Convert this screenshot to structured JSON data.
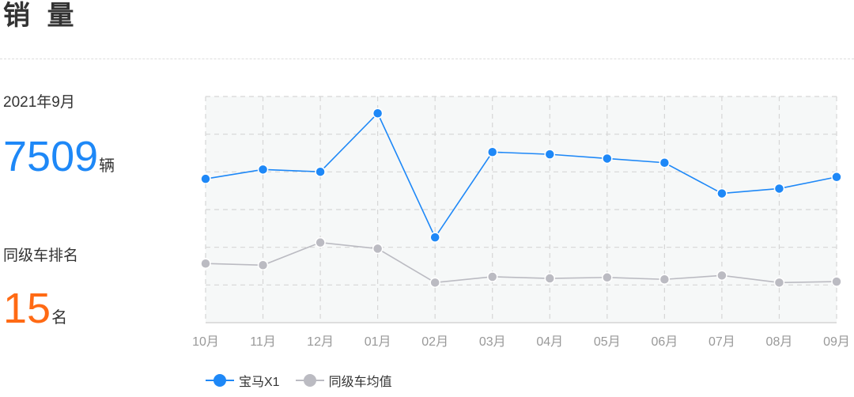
{
  "header": {
    "title": "销 量"
  },
  "stats": {
    "period": "2021年9月",
    "sales_value": "7509",
    "sales_unit": "辆",
    "rank_label": "同级车排名",
    "rank_value": "15",
    "rank_unit": "名"
  },
  "colors": {
    "primary": "#1e88f7",
    "average": "#bbbbc2",
    "rank": "#ff6a14",
    "plot_bg": "#f6f8f8",
    "grid": "#d6d6d6"
  },
  "chart_data": {
    "type": "line",
    "categories": [
      "10月",
      "11月",
      "12月",
      "01月",
      "02月",
      "03月",
      "04月",
      "05月",
      "06月",
      "07月",
      "08月",
      "09月"
    ],
    "series": [
      {
        "name": "宝马X1",
        "values": [
          7450,
          7740,
          7670,
          9480,
          5640,
          8280,
          8210,
          8080,
          7950,
          7000,
          7150,
          7509
        ]
      },
      {
        "name": "同级车均值",
        "values": [
          4830,
          4780,
          5480,
          5290,
          4240,
          4420,
          4370,
          4400,
          4340,
          4460,
          4240,
          4270
        ]
      }
    ],
    "ylim": [
      3000,
      10000
    ],
    "grid": true,
    "legend_position": "bottom-left"
  }
}
